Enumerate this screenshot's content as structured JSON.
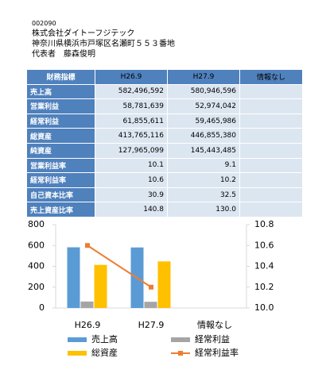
{
  "header": {
    "code": "002090",
    "name": "株式会社ダイトーフジテック",
    "address": "神奈川県横浜市戸塚区名瀬町５５３番地",
    "representative": "代表者　藤森俊明"
  },
  "table": {
    "header": [
      "財務指標",
      "H26.9",
      "H27.9",
      "情報なし"
    ],
    "rows": [
      [
        "売上高",
        "582,496,592",
        "580,946,596"
      ],
      [
        "営業利益",
        "58,781,639",
        "52,974,042"
      ],
      [
        "経常利益",
        "61,855,611",
        "59,465,986"
      ],
      [
        "総資産",
        "413,765,116",
        "446,855,380"
      ],
      [
        "純資産",
        "127,965,099",
        "145,443,485"
      ],
      [
        "営業利益率",
        "10.1",
        "9.1"
      ],
      [
        "経常利益率",
        "10.6",
        "10.2"
      ],
      [
        "自己資本比率",
        "30.9",
        "32.5"
      ],
      [
        "売上資産比率",
        "140.8",
        "130.0"
      ]
    ]
  },
  "chart_data": {
    "type": "bar",
    "categories": [
      "H26.9",
      "H27.9",
      "情報なし"
    ],
    "series": [
      {
        "name": "売上高",
        "color": "#5b9bd5",
        "values": [
          582.5,
          580.9,
          null
        ]
      },
      {
        "name": "経常利益",
        "color": "#a5a5a5",
        "values": [
          61.9,
          59.5,
          null
        ]
      },
      {
        "name": "総資産",
        "color": "#ffc000",
        "values": [
          413.8,
          446.9,
          null
        ]
      },
      {
        "name": "経常利益率",
        "color": "#ed7d31",
        "type": "line",
        "axis": "y2",
        "values": [
          10.6,
          10.2,
          null
        ]
      }
    ],
    "ylim": [
      0,
      800
    ],
    "yticks": [
      0,
      200,
      400,
      600,
      800
    ],
    "y2lim": [
      10.0,
      10.8
    ],
    "y2ticks": [
      {
        "value": 10.0,
        "label": "10.0"
      },
      10.2,
      10.4,
      10.6,
      10.8
    ]
  }
}
